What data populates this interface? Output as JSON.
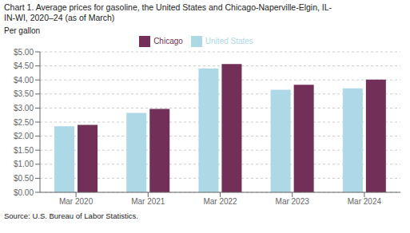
{
  "chart_data": {
    "type": "bar",
    "title": "Chart 1. Average prices for gasoline, the United States and Chicago-Naperville-Elgin, IL-",
    "subtitle": "IN-WI, 2020–24 (as of March)",
    "ylabel": "Per gallon",
    "source": "Source: U.S. Bureau of Labor Statistics.",
    "categories": [
      "Mar 2020",
      "Mar 2021",
      "Mar 2022",
      "Mar 2023",
      "Mar 2024"
    ],
    "series": [
      {
        "name": "United States",
        "color": "#ADD8E6",
        "values": [
          2.35,
          2.83,
          4.41,
          3.65,
          3.7
        ]
      },
      {
        "name": "Chicago",
        "color": "#722F57",
        "values": [
          2.4,
          2.97,
          4.57,
          3.83,
          4.01
        ]
      }
    ],
    "ylim": [
      0,
      5.0
    ],
    "yticks": [
      {
        "value": 0,
        "label": "$0.00"
      },
      {
        "value": 0.5,
        "label": "$0.50"
      },
      {
        "value": 1.0,
        "label": "$1.00"
      },
      {
        "value": 1.5,
        "label": "$1.50"
      },
      {
        "value": 2.0,
        "label": "$2.00"
      },
      {
        "value": 2.5,
        "label": "$2.50"
      },
      {
        "value": 3.0,
        "label": "$3.00"
      },
      {
        "value": 3.5,
        "label": "$3.50"
      },
      {
        "value": 4.0,
        "label": "$4.00"
      },
      {
        "value": 4.5,
        "label": "$4.50"
      },
      {
        "value": 5.0,
        "label": "$5.00"
      }
    ],
    "grid": true,
    "legend": "top"
  }
}
